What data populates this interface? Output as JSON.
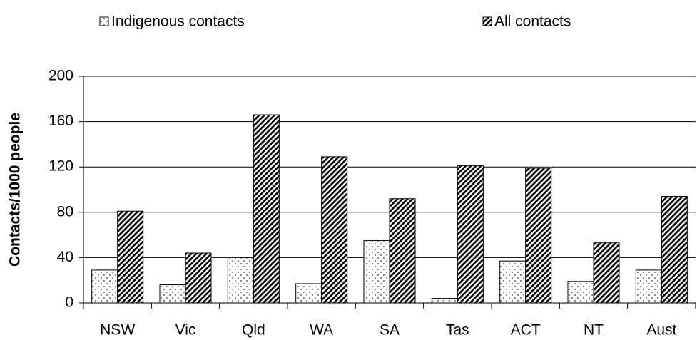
{
  "chart_data": {
    "type": "bar",
    "categories": [
      "NSW",
      "Vic",
      "Qld",
      "WA",
      "SA",
      "Tas",
      "ACT",
      "NT",
      "Aust"
    ],
    "series": [
      {
        "name": "Indigenous contacts",
        "color": "#000000",
        "pattern": "dots",
        "values": [
          29,
          16,
          40,
          17,
          55,
          4,
          37,
          19,
          29
        ]
      },
      {
        "name": "All contacts",
        "color": "#000000",
        "pattern": "hatch",
        "values": [
          81,
          44,
          166,
          129,
          92,
          121,
          119,
          53,
          94
        ]
      }
    ],
    "ylabel": "Contacts/1000 people",
    "ylim": [
      0,
      200
    ],
    "yticks": [
      0,
      40,
      80,
      120,
      160,
      200
    ],
    "grid": true,
    "legend": "top"
  }
}
